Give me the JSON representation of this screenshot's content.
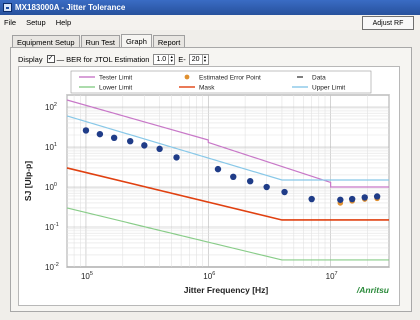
{
  "window": {
    "title": "MX183000A - Jitter Tolerance"
  },
  "menu": {
    "items": [
      "File",
      "Setup",
      "Help"
    ]
  },
  "adjust_button": "Adjust RF",
  "tabs": [
    {
      "label": "Equipment Setup"
    },
    {
      "label": "Run Test"
    },
    {
      "label": "Graph",
      "active": true
    },
    {
      "label": "Report"
    }
  ],
  "display": {
    "label": "Display",
    "checked": true,
    "checkbox_label": "BER for JTOL Estimation",
    "ber_mantissa": "1.0",
    "ber_separator": "E-",
    "ber_exponent": "20"
  },
  "brand": "Anritsu",
  "colors": {
    "tester_limit": "#c878c8",
    "estimated_error": "#e09030",
    "data": "#1f3c88",
    "lower_limit": "#88cc88",
    "mask": "#e04010",
    "upper_limit": "#88c8e8"
  },
  "chart_data": {
    "type": "scatter",
    "xlabel": "Jitter Frequency [Hz]",
    "ylabel": "SJ [UIp-p]",
    "x_scale": "log",
    "y_scale": "log",
    "xlim": [
      70000,
      30000000
    ],
    "ylim": [
      0.01,
      200
    ],
    "x_ticks": [
      {
        "mantissa": "10",
        "exp": "5",
        "value": 100000
      },
      {
        "mantissa": "10",
        "exp": "6",
        "value": 1000000
      },
      {
        "mantissa": "10",
        "exp": "7",
        "value": 10000000
      }
    ],
    "y_ticks": [
      {
        "mantissa": "10",
        "exp": "2",
        "value": 100
      },
      {
        "mantissa": "10",
        "exp": "1",
        "value": 10
      },
      {
        "mantissa": "10",
        "exp": "0",
        "value": 1
      },
      {
        "mantissa": "10",
        "exp": "-1",
        "value": 0.1
      },
      {
        "mantissa": "10",
        "exp": "-2",
        "value": 0.01
      }
    ],
    "grid": true,
    "legend_position": "top",
    "legend": [
      {
        "name": "Tester Limit",
        "kind": "line",
        "color": "#c878c8"
      },
      {
        "name": "Estimated Error Point",
        "kind": "marker",
        "color": "#e09030"
      },
      {
        "name": "Data",
        "kind": "dash",
        "color": "#000000"
      },
      {
        "name": "Lower Limit",
        "kind": "line",
        "color": "#88cc88"
      },
      {
        "name": "Mask",
        "kind": "line",
        "color": "#e04010"
      },
      {
        "name": "Upper Limit",
        "kind": "line",
        "color": "#88c8e8"
      }
    ],
    "series": [
      {
        "name": "Tester Limit",
        "kind": "line",
        "color": "#c878c8",
        "x": [
          70000,
          1000000,
          1000000,
          10000000,
          10000000,
          30000000
        ],
        "y": [
          150,
          15,
          13,
          1.3,
          1.0,
          1.0
        ]
      },
      {
        "name": "Upper Limit",
        "kind": "line",
        "color": "#88c8e8",
        "x": [
          70000,
          4000000,
          30000000
        ],
        "y": [
          60,
          1.5,
          1.5
        ]
      },
      {
        "name": "Mask",
        "kind": "line",
        "color": "#e04010",
        "x": [
          70000,
          4000000,
          30000000
        ],
        "y": [
          3.0,
          0.15,
          0.15
        ]
      },
      {
        "name": "Lower Limit",
        "kind": "line",
        "color": "#88cc88",
        "x": [
          70000,
          4000000,
          30000000
        ],
        "y": [
          0.3,
          0.015,
          0.015
        ]
      },
      {
        "name": "Estimated Error Point",
        "kind": "marker",
        "color": "#e09030",
        "x": [
          12000000,
          15000000,
          19000000,
          24000000
        ],
        "y": [
          0.4,
          0.45,
          0.5,
          0.52
        ]
      },
      {
        "name": "Data",
        "kind": "marker",
        "color": "#1f3c88",
        "x": [
          100000,
          130000,
          170000,
          230000,
          300000,
          400000,
          550000,
          1200000,
          1600000,
          2200000,
          3000000,
          4200000,
          7000000,
          12000000,
          15000000,
          19000000,
          24000000
        ],
        "y": [
          26,
          21,
          17,
          14,
          11,
          9,
          5.5,
          2.8,
          1.8,
          1.4,
          1.0,
          0.75,
          0.5,
          0.48,
          0.5,
          0.55,
          0.58
        ]
      }
    ]
  }
}
